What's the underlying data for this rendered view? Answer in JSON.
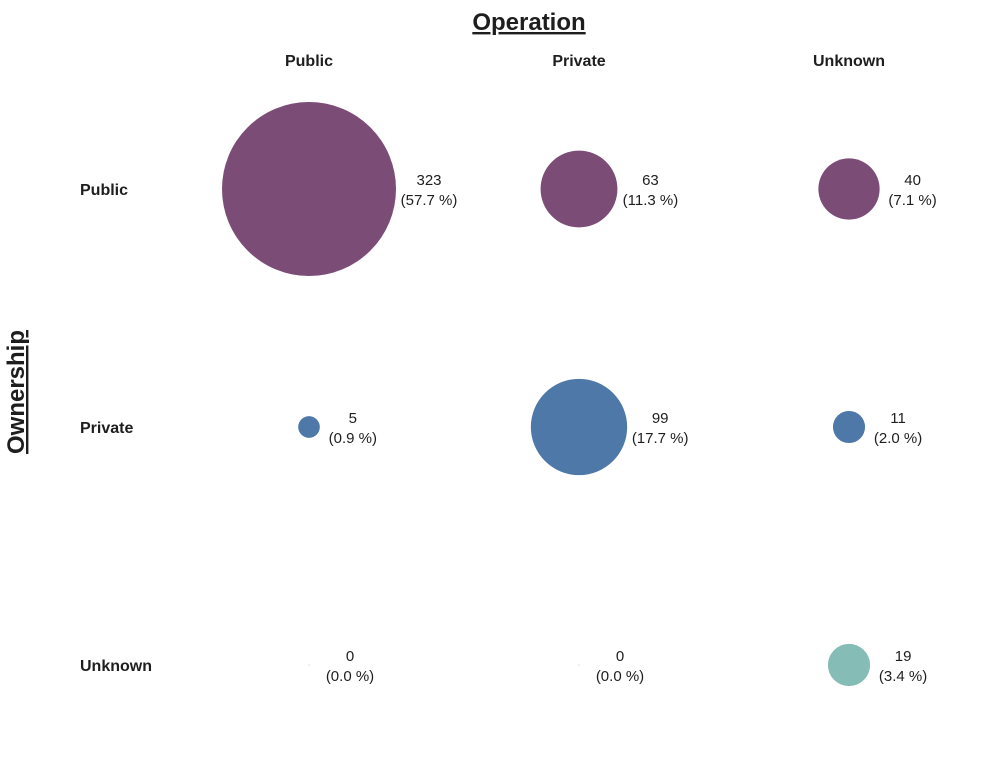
{
  "chart_data": {
    "type": "bubble-matrix",
    "title": "Operation",
    "ylabel": "Ownership",
    "columns": [
      "Public",
      "Private",
      "Unknown"
    ],
    "rows": [
      "Public",
      "Private",
      "Unknown"
    ],
    "cells": [
      [
        {
          "count": 323,
          "count_label": "323",
          "pct_label": "(57.7 %)",
          "color": "#7a4c76"
        },
        {
          "count": 63,
          "count_label": "63",
          "pct_label": "(11.3 %)",
          "color": "#7a4c76"
        },
        {
          "count": 40,
          "count_label": "40",
          "pct_label": "(7.1 %)",
          "color": "#7a4c76"
        }
      ],
      [
        {
          "count": 5,
          "count_label": "5",
          "pct_label": "(0.9 %)",
          "color": "#4e78a7"
        },
        {
          "count": 99,
          "count_label": "99",
          "pct_label": "(17.7 %)",
          "color": "#4e78a7"
        },
        {
          "count": 11,
          "count_label": "11",
          "pct_label": "(2.0 %)",
          "color": "#4e78a7"
        }
      ],
      [
        {
          "count": 0,
          "count_label": "0",
          "pct_label": "(0.0 %)",
          "color": "#86bcb6"
        },
        {
          "count": 0,
          "count_label": "0",
          "pct_label": "(0.0 %)",
          "color": "#86bcb6"
        },
        {
          "count": 19,
          "count_label": "19",
          "pct_label": "(3.4 %)",
          "color": "#86bcb6"
        }
      ]
    ]
  }
}
